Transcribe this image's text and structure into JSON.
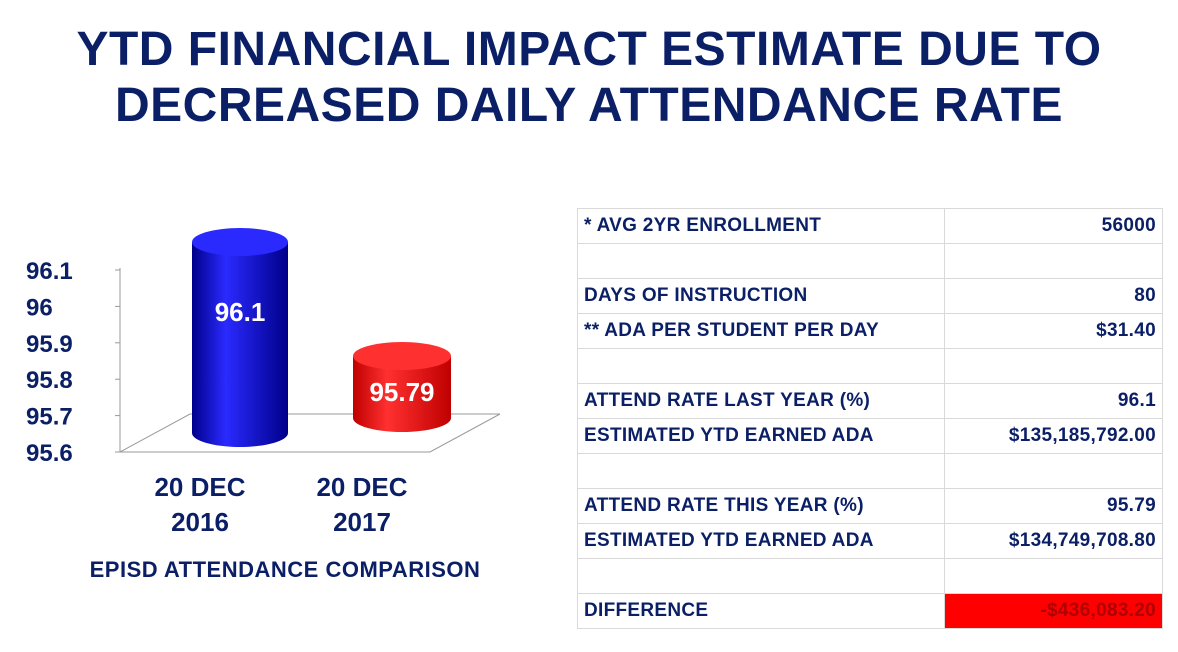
{
  "title": {
    "line1": "YTD FINANCIAL IMPACT ESTIMATE DUE TO",
    "line2": "DECREASED DAILY ATTENDANCE RATE"
  },
  "chart_data": {
    "type": "bar",
    "style": "3d-cylinder",
    "categories": [
      "20 DEC 2016",
      "20 DEC 2017"
    ],
    "category_lines": [
      [
        "20 DEC",
        "2016"
      ],
      [
        "20 DEC",
        "2017"
      ]
    ],
    "values": [
      96.1,
      95.79
    ],
    "data_labels": [
      "96.1",
      "95.79"
    ],
    "bar_colors": [
      "#0000cc",
      "#ff0000"
    ],
    "ylim": [
      95.6,
      96.1
    ],
    "yticks": [
      95.6,
      95.7,
      95.8,
      95.9,
      96,
      96.1
    ],
    "ytick_labels": [
      "95.6",
      "95.7",
      "95.8",
      "95.9",
      "96",
      "96.1"
    ],
    "caption": "EPISD ATTENDANCE COMPARISON",
    "grid": false,
    "legend": "none"
  },
  "table": {
    "rows": [
      {
        "label": "* AVG 2YR ENROLLMENT",
        "value": "56000"
      },
      {
        "label": "",
        "value": ""
      },
      {
        "label": "DAYS OF INSTRUCTION",
        "value": "80"
      },
      {
        "label": "** ADA PER STUDENT PER DAY",
        "value": "$31.40"
      },
      {
        "label": "",
        "value": ""
      },
      {
        "label": "ATTEND RATE LAST YEAR (%)",
        "value": "96.1"
      },
      {
        "label": "ESTIMATED YTD EARNED ADA",
        "value": "$135,185,792.00"
      },
      {
        "label": "",
        "value": ""
      },
      {
        "label": "ATTEND RATE THIS YEAR (%)",
        "value": "95.79"
      },
      {
        "label": "ESTIMATED YTD EARNED ADA",
        "value": "$134,749,708.80"
      },
      {
        "label": "",
        "value": ""
      },
      {
        "label": "DIFFERENCE",
        "value": "-$436,083.20",
        "highlight": "#ff0000"
      }
    ]
  }
}
